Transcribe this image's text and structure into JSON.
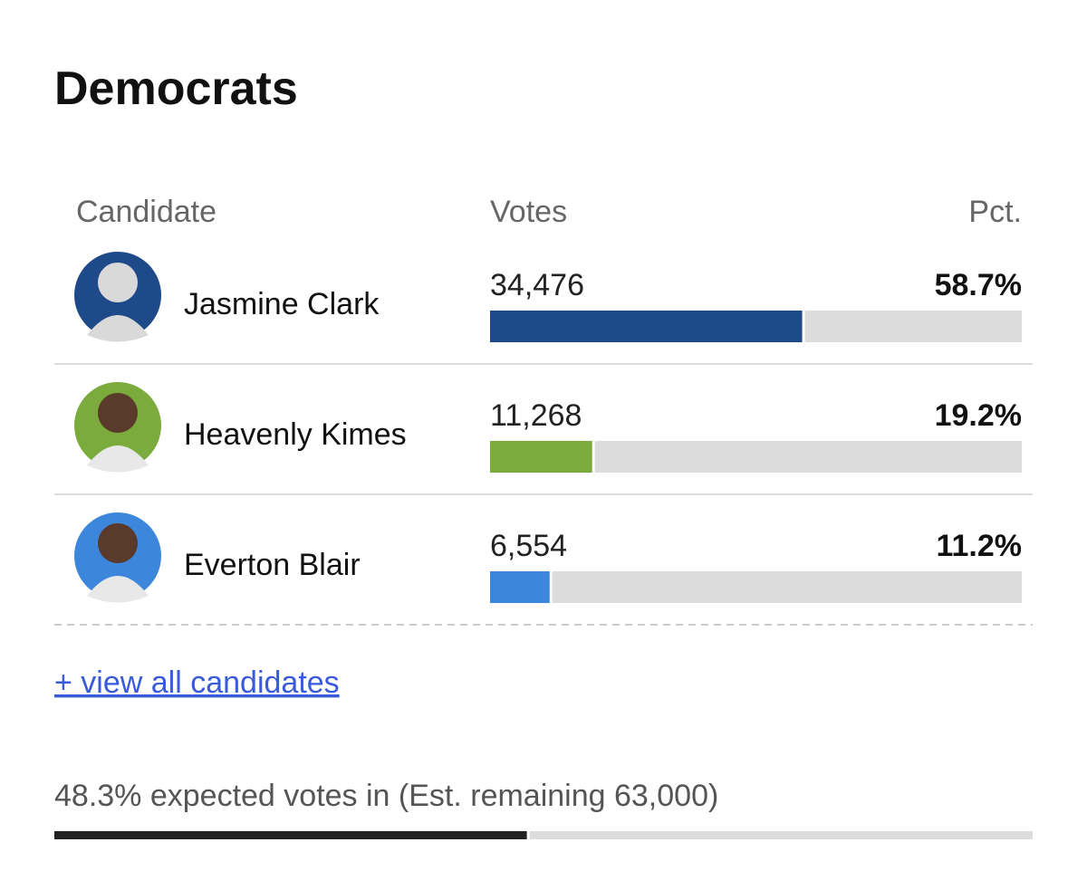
{
  "title": "Democrats",
  "table": {
    "headers": [
      "Candidate",
      "Votes",
      "Pct."
    ],
    "rows": [
      {
        "name": "Jasmine Clark",
        "votes": "34,476",
        "pct": 58.7,
        "pct_label": "58.7%",
        "color": "#1f4a8a"
      },
      {
        "name": "Heavenly Kimes",
        "votes": "11,268",
        "pct": 19.2,
        "pct_label": "19.2%",
        "color": "#7aab3c"
      },
      {
        "name": "Everton Blair",
        "votes": "6,554",
        "pct": 11.2,
        "pct_label": "11.2%",
        "color": "#3c87dc"
      }
    ]
  },
  "link": "+ view all candidates",
  "footer": {
    "text": "48.3% expected votes in (Est. remaining 63,000)",
    "progress": 48.3,
    "color": "#222222"
  }
}
